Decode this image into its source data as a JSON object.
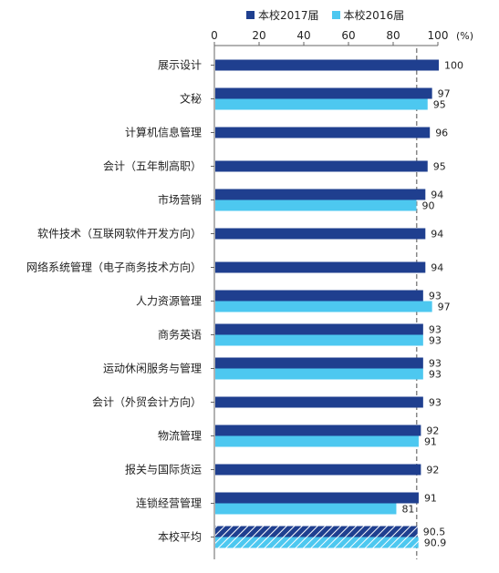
{
  "chart_data": {
    "type": "bar",
    "orientation": "horizontal",
    "unit_label": "(%)",
    "xlim": [
      0,
      100
    ],
    "x_ticks": [
      "0",
      "20",
      "40",
      "60",
      "80",
      "100"
    ],
    "average_line_value": 90.5,
    "legend": [
      {
        "name": "本校2017届",
        "color": "#1f3f8f"
      },
      {
        "name": "本校2016届",
        "color": "#4dc8f0"
      }
    ],
    "categories": [
      "展示设计",
      "文秘",
      "计算机信息管理",
      "会计（五年制高职）",
      "市场营销",
      "软件技术（互联网软件开发方向）",
      "网络系统管理（电子商务技术方向）",
      "人力资源管理",
      "商务英语",
      "运动休闲服务与管理",
      "会计（外贸会计方向）",
      "物流管理",
      "报关与国际货运",
      "连锁经营管理",
      "本校平均"
    ],
    "series": [
      {
        "name": "本校2017届",
        "color": "#1f3f8f",
        "values": [
          100,
          97,
          96,
          95,
          94,
          94,
          94,
          93,
          93,
          93,
          93,
          92,
          92,
          91,
          90.5
        ]
      },
      {
        "name": "本校2016届",
        "color": "#4dc8f0",
        "values": [
          null,
          95,
          null,
          null,
          90,
          null,
          null,
          97,
          93,
          93,
          null,
          91,
          null,
          81,
          90.9
        ]
      }
    ]
  }
}
